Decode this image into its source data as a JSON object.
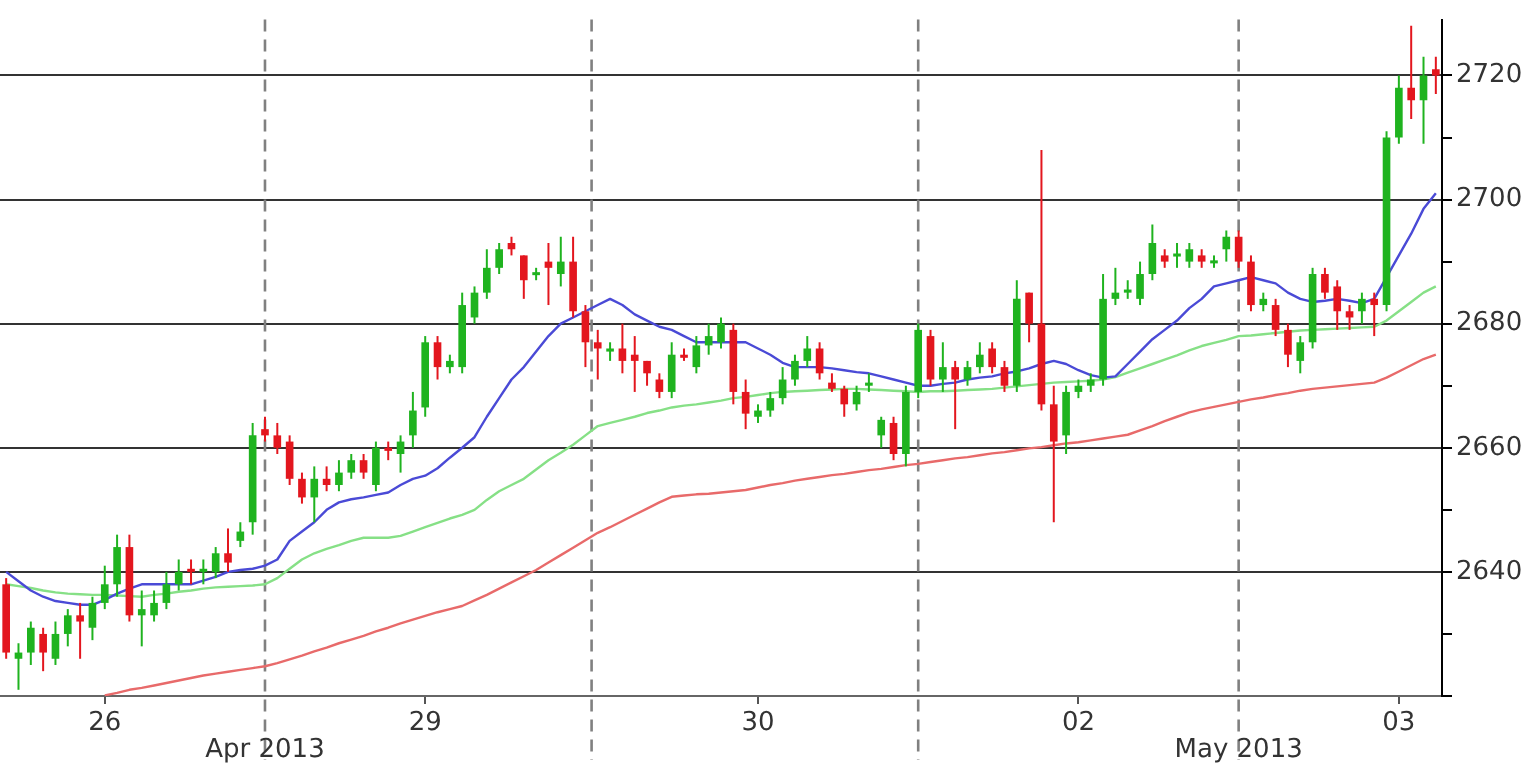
{
  "chart_data": {
    "type": "candlestick",
    "categories": [
      null,
      null,
      null,
      null,
      null,
      null,
      null,
      null,
      "26",
      null,
      null,
      null,
      null,
      null,
      null,
      null,
      null,
      null,
      null,
      null,
      null,
      null,
      null,
      null,
      null,
      null,
      null,
      null,
      null,
      null,
      null,
      null,
      null,
      null,
      "29",
      null,
      null,
      null,
      null,
      null,
      null,
      null,
      null,
      null,
      null,
      null,
      null,
      null,
      null,
      null,
      null,
      null,
      null,
      null,
      null,
      null,
      null,
      null,
      null,
      null,
      null,
      "30",
      null,
      null,
      null,
      null,
      null,
      null,
      null,
      null,
      null,
      null,
      null,
      null,
      null,
      null,
      null,
      null,
      null,
      null,
      null,
      null,
      null,
      null,
      null,
      null,
      null,
      "02",
      null,
      null,
      null,
      null,
      null,
      null,
      null,
      null,
      null,
      null,
      null,
      null,
      null,
      null,
      null,
      null,
      null,
      null,
      null,
      null,
      null,
      null,
      null,
      null,
      null,
      "03",
      null,
      null,
      null
    ],
    "ohlc": [
      [
        2638,
        2639,
        2626,
        2627
      ],
      [
        2626,
        2628.5,
        2621,
        2627
      ],
      [
        2627,
        2632,
        2625,
        2631
      ],
      [
        2630,
        2631,
        2624,
        2627
      ],
      [
        2626,
        2632,
        2625,
        2630
      ],
      [
        2630,
        2634,
        2628,
        2633
      ],
      [
        2633,
        2635,
        2626,
        2632
      ],
      [
        2631,
        2636,
        2629,
        2635
      ],
      [
        2635,
        2641,
        2634,
        2638
      ],
      [
        2638,
        2646,
        2636,
        2644
      ],
      [
        2644,
        2646,
        2632,
        2633
      ],
      [
        2633,
        2637,
        2628,
        2634
      ],
      [
        2633,
        2637,
        2632,
        2635
      ],
      [
        2635,
        2640,
        2634,
        2638
      ],
      [
        2638,
        2642,
        2637,
        2640
      ],
      [
        2640.5,
        2642,
        2638,
        2640
      ],
      [
        2640,
        2642,
        2638,
        2640.5
      ],
      [
        2640,
        2644,
        2639,
        2643
      ],
      [
        2643,
        2647,
        2640,
        2641.5
      ],
      [
        2645,
        2648,
        2644,
        2646.5
      ],
      [
        2648,
        2664,
        2646,
        2662
      ],
      [
        2663,
        2665,
        2661,
        2662
      ],
      [
        2662,
        2664,
        2659,
        2660
      ],
      [
        2661,
        2662,
        2654,
        2655
      ],
      [
        2655,
        2656,
        2651,
        2652
      ],
      [
        2652,
        2657,
        2648,
        2655
      ],
      [
        2655,
        2657,
        2653,
        2654
      ],
      [
        2654,
        2658,
        2653,
        2656
      ],
      [
        2656,
        2659,
        2655,
        2658
      ],
      [
        2658,
        2659,
        2655,
        2656
      ],
      [
        2654,
        2661,
        2653,
        2660
      ],
      [
        2660,
        2661,
        2658,
        2659.5
      ],
      [
        2659,
        2662,
        2656,
        2661
      ],
      [
        2662,
        2669,
        2660,
        2666
      ],
      [
        2666.5,
        2678,
        2665,
        2677
      ],
      [
        2677,
        2678,
        2671,
        2673
      ],
      [
        2673,
        2675,
        2672,
        2674
      ],
      [
        2673,
        2685,
        2672,
        2683
      ],
      [
        2681,
        2686,
        2680,
        2685
      ],
      [
        2685,
        2692,
        2684,
        2689
      ],
      [
        2689,
        2693,
        2688,
        2692
      ],
      [
        2693,
        2694,
        2691,
        2692
      ],
      [
        2691,
        2691,
        2684,
        2687
      ],
      [
        2688,
        2689,
        2687,
        2688.3
      ],
      [
        2690,
        2693,
        2683,
        2689
      ],
      [
        2688,
        2694,
        2686,
        2690
      ],
      [
        2690,
        2694,
        2681,
        2682
      ],
      [
        2682,
        2683,
        2673,
        2677
      ],
      [
        2677,
        2679,
        2671,
        2676
      ],
      [
        2675.5,
        2677,
        2674,
        2676
      ],
      [
        2676,
        2680,
        2672,
        2674
      ],
      [
        2675,
        2678,
        2669,
        2674
      ],
      [
        2674,
        2674,
        2670,
        2672
      ],
      [
        2671,
        2672,
        2668,
        2669
      ],
      [
        2669,
        2677,
        2668,
        2675
      ],
      [
        2675,
        2676,
        2674,
        2674.5
      ],
      [
        2673,
        2678,
        2672,
        2676.5
      ],
      [
        2676.5,
        2680,
        2675,
        2678
      ],
      [
        2677,
        2681,
        2676,
        2680
      ],
      [
        2679,
        2680,
        2667,
        2669
      ],
      [
        2669,
        2671,
        2663,
        2665.5
      ],
      [
        2665,
        2667,
        2664,
        2666
      ],
      [
        2666,
        2669,
        2665,
        2668
      ],
      [
        2668,
        2673,
        2667,
        2671
      ],
      [
        2671,
        2675,
        2670,
        2674
      ],
      [
        2674,
        2678,
        2673,
        2676
      ],
      [
        2676,
        2677,
        2671,
        2672
      ],
      [
        2670.5,
        2672,
        2669,
        2669.5
      ],
      [
        2669.5,
        2670,
        2665,
        2667
      ],
      [
        2667,
        2670,
        2666,
        2669
      ],
      [
        2670,
        2672,
        2669,
        2670.5
      ],
      [
        2662,
        2665,
        2660,
        2664.5
      ],
      [
        2664,
        2665,
        2658,
        2659
      ],
      [
        2659,
        2670,
        2657,
        2669
      ],
      [
        2669,
        2680,
        2668,
        2679
      ],
      [
        2678,
        2679,
        2670,
        2671
      ],
      [
        2671,
        2677,
        2669,
        2673
      ],
      [
        2673,
        2674,
        2663,
        2671
      ],
      [
        2671,
        2674,
        2670,
        2673
      ],
      [
        2673,
        2677,
        2672,
        2675
      ],
      [
        2676,
        2677,
        2672,
        2673
      ],
      [
        2673,
        2674,
        2669,
        2670
      ],
      [
        2670,
        2687,
        2669,
        2684
      ],
      [
        2685,
        2685,
        2677,
        2680
      ],
      [
        2680,
        2708,
        2666,
        2667
      ],
      [
        2667,
        2670,
        2648,
        2661
      ],
      [
        2662,
        2670,
        2659,
        2669
      ],
      [
        2669,
        2671,
        2668,
        2670
      ],
      [
        2670,
        2672,
        2669,
        2671
      ],
      [
        2671,
        2688,
        2670,
        2684
      ],
      [
        2684,
        2689,
        2683,
        2685
      ],
      [
        2685,
        2687,
        2684,
        2685.5
      ],
      [
        2684,
        2690,
        2683,
        2688
      ],
      [
        2688,
        2696,
        2687,
        2693
      ],
      [
        2691,
        2692,
        2689,
        2690
      ],
      [
        2691,
        2693,
        2689,
        2691.3
      ],
      [
        2690,
        2693,
        2689,
        2692
      ],
      [
        2691,
        2692,
        2689,
        2690
      ],
      [
        2690,
        2691,
        2689,
        2690.2
      ],
      [
        2692,
        2695,
        2690,
        2694
      ],
      [
        2694,
        2695,
        2689,
        2690
      ],
      [
        2690,
        2691,
        2682,
        2683
      ],
      [
        2683,
        2685,
        2682,
        2684
      ],
      [
        2683,
        2684,
        2678,
        2679
      ],
      [
        2679,
        2680,
        2673,
        2675
      ],
      [
        2674,
        2678,
        2672,
        2677
      ],
      [
        2677,
        2689,
        2676,
        2688
      ],
      [
        2688,
        2689,
        2684,
        2685
      ],
      [
        2686,
        2687,
        2679,
        2682
      ],
      [
        2682,
        2683,
        2679,
        2681
      ],
      [
        2682,
        2685,
        2680,
        2684
      ],
      [
        2684,
        2685,
        2678,
        2683
      ],
      [
        2683,
        2711,
        2682,
        2710
      ],
      [
        2710,
        2720,
        2709,
        2718
      ],
      [
        2718,
        2728,
        2713,
        2716
      ],
      [
        2716,
        2723,
        2709,
        2720
      ],
      [
        2721,
        2723,
        2717,
        2720
      ]
    ],
    "series": [
      {
        "type": "line",
        "color": "#4a4ad6",
        "values": [
          2640,
          2638.5,
          2637,
          2636,
          2635.3,
          2635,
          2634.7,
          2634.7,
          2635.5,
          2636.5,
          2637.3,
          2638,
          2638,
          2638,
          2638,
          2638,
          2638.6,
          2639.2,
          2640,
          2640.3,
          2640.5,
          2641,
          2642,
          2645,
          2646.5,
          2648,
          2650,
          2651.2,
          2651.7,
          2652,
          2652.4,
          2652.8,
          2654,
          2655,
          2655.5,
          2656.7,
          2658.4,
          2660,
          2661.7,
          2665,
          2668,
          2671,
          2673,
          2675.5,
          2678,
          2680,
          2681,
          2682,
          2683,
          2684,
          2683,
          2681.5,
          2680.5,
          2679.5,
          2679,
          2678,
          2677,
          2677,
          2677,
          2677,
          2677,
          2676,
          2675,
          2673.7,
          2673,
          2673,
          2673,
          2672.8,
          2672.5,
          2672.2,
          2672,
          2671.5,
          2671,
          2670.5,
          2670,
          2670,
          2670.3,
          2670.5,
          2671,
          2671.3,
          2671.5,
          2672,
          2672.3,
          2672.8,
          2673.5,
          2674,
          2673.5,
          2672.5,
          2671.7,
          2671.3,
          2671.5,
          2673.5,
          2675.5,
          2677.5,
          2679,
          2680.5,
          2682.5,
          2684,
          2686,
          2686.5,
          2687,
          2687.5,
          2687,
          2686.5,
          2685,
          2684,
          2683.5,
          2683.7,
          2684,
          2683.7,
          2683.3,
          2684,
          2687.5,
          2691,
          2694.5,
          2698.5,
          2701
        ]
      },
      {
        "type": "line",
        "color": "#86e086",
        "values": [
          2638,
          2637.7,
          2637.4,
          2637,
          2636.7,
          2636.5,
          2636.4,
          2636.3,
          2636.3,
          2636.2,
          2636.1,
          2636,
          2636.3,
          2636.5,
          2636.8,
          2637,
          2637.3,
          2637.5,
          2637.6,
          2637.7,
          2637.8,
          2638,
          2639,
          2640.5,
          2642,
          2643,
          2643.7,
          2644.3,
          2645,
          2645.5,
          2645.5,
          2645.5,
          2645.8,
          2646.5,
          2647.2,
          2647.9,
          2648.6,
          2649.2,
          2650,
          2651.6,
          2653,
          2654,
          2655,
          2656.5,
          2658,
          2659.2,
          2660.5,
          2662,
          2663.5,
          2664,
          2664.5,
          2665,
          2665.6,
          2666,
          2666.5,
          2666.8,
          2667,
          2667.3,
          2667.6,
          2668,
          2668.2,
          2668.5,
          2668.8,
          2669,
          2669.1,
          2669.2,
          2669.3,
          2669.4,
          2669.5,
          2669.5,
          2669.4,
          2669.3,
          2669.2,
          2669.1,
          2669,
          2669.1,
          2669.1,
          2669.2,
          2669.3,
          2669.4,
          2669.5,
          2669.7,
          2669.9,
          2670.1,
          2670.3,
          2670.5,
          2670.6,
          2670.7,
          2670.8,
          2671,
          2671.4,
          2672.1,
          2672.8,
          2673.5,
          2674.2,
          2674.9,
          2675.7,
          2676.4,
          2676.9,
          2677.4,
          2678,
          2678.1,
          2678.3,
          2678.5,
          2678.7,
          2678.9,
          2679,
          2679.1,
          2679.2,
          2679.3,
          2679.4,
          2679.5,
          2680.5,
          2682,
          2683.5,
          2685,
          2686
        ]
      },
      {
        "type": "line",
        "color": "#e86a6a",
        "values": [
          null,
          null,
          null,
          null,
          null,
          null,
          null,
          null,
          2620.1,
          2620.5,
          2621,
          2621.3,
          2621.7,
          2622.1,
          2622.5,
          2622.9,
          2623.3,
          2623.6,
          2623.9,
          2624.2,
          2624.5,
          2624.8,
          2625.3,
          2625.9,
          2626.5,
          2627.2,
          2627.8,
          2628.5,
          2629.1,
          2629.7,
          2630.4,
          2631,
          2631.7,
          2632.3,
          2632.9,
          2633.5,
          2634,
          2634.5,
          2635.4,
          2636.3,
          2637.3,
          2638.3,
          2639.3,
          2640.3,
          2641.5,
          2642.7,
          2643.9,
          2645.1,
          2646.3,
          2647.2,
          2648.2,
          2649.2,
          2650.2,
          2651.2,
          2652.1,
          2652.3,
          2652.5,
          2652.6,
          2652.8,
          2653,
          2653.2,
          2653.6,
          2654,
          2654.3,
          2654.7,
          2655,
          2655.3,
          2655.6,
          2655.8,
          2656.1,
          2656.4,
          2656.6,
          2656.9,
          2657.2,
          2657.4,
          2657.7,
          2658,
          2658.3,
          2658.5,
          2658.8,
          2659.1,
          2659.3,
          2659.6,
          2659.9,
          2660.1,
          2660.4,
          2660.7,
          2660.9,
          2661.2,
          2661.5,
          2661.8,
          2662.1,
          2662.8,
          2663.5,
          2664.3,
          2665,
          2665.7,
          2666.2,
          2666.6,
          2667,
          2667.4,
          2667.8,
          2668.1,
          2668.5,
          2668.8,
          2669.2,
          2669.5,
          2669.7,
          2669.9,
          2670.1,
          2670.3,
          2670.5,
          2671.3,
          2672.3,
          2673.3,
          2674.3,
          2675
        ]
      }
    ],
    "ylim": [
      2620,
      2729
    ],
    "yticks": [
      {
        "value": 2620,
        "label": null
      },
      {
        "value": 2630,
        "label": null
      },
      2640,
      {
        "value": 2650,
        "label": null
      },
      2660,
      {
        "value": 2670,
        "label": null
      },
      2680,
      {
        "value": 2690,
        "label": null
      },
      2700,
      {
        "value": 2710,
        "label": null
      },
      2720
    ],
    "annotations": [
      "Apr 2013",
      "May 2013"
    ],
    "grid": true,
    "legend": false
  }
}
